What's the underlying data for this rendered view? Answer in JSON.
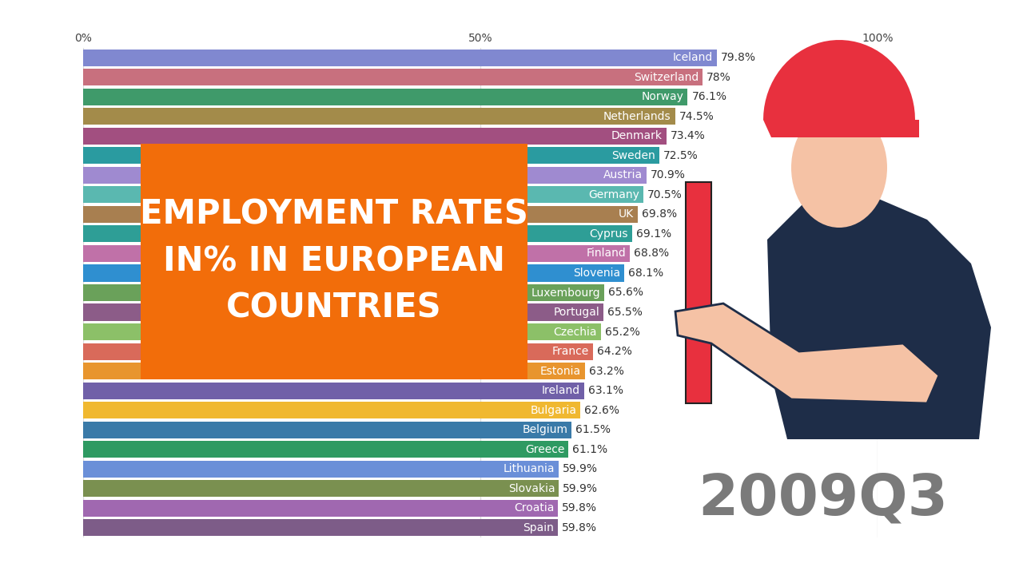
{
  "chart_data": {
    "type": "bar",
    "orientation": "horizontal",
    "title": "EMPLOYMENT RATES\nIN% IN EUROPEAN\nCOUNTRIES",
    "annotations": [
      "2009Q3"
    ],
    "categories": [
      "Iceland",
      "Switzerland",
      "Norway",
      "Netherlands",
      "Denmark",
      "Sweden",
      "Austria",
      "Germany",
      "UK",
      "Cyprus",
      "Finland",
      "Slovenia",
      "Luxembourg",
      "Portugal",
      "Czechia",
      "France",
      "Estonia",
      "Ireland",
      "Bulgaria",
      "Belgium",
      "Greece",
      "Lithuania",
      "Slovakia",
      "Croatia",
      "Spain"
    ],
    "values": [
      79.8,
      78,
      76.1,
      74.5,
      73.4,
      72.5,
      70.9,
      70.5,
      69.8,
      69.1,
      68.8,
      68.1,
      65.6,
      65.5,
      65.2,
      64.2,
      63.2,
      63.1,
      62.6,
      61.5,
      61.1,
      59.9,
      59.9,
      59.8,
      59.8
    ],
    "value_labels": [
      "79.8%",
      "78%",
      "76.1%",
      "74.5%",
      "73.4%",
      "72.5%",
      "70.9%",
      "70.5%",
      "69.8%",
      "69.1%",
      "68.8%",
      "68.1%",
      "65.6%",
      "65.5%",
      "65.2%",
      "64.2%",
      "63.2%",
      "63.1%",
      "62.6%",
      "61.5%",
      "61.1%",
      "59.9%",
      "59.9%",
      "59.8%",
      "59.8%"
    ],
    "colors": [
      "#8088d0",
      "#c8707e",
      "#3f9a6a",
      "#a38b4a",
      "#a24f80",
      "#2a9ba0",
      "#9f8ad0",
      "#5ab8b0",
      "#a87f50",
      "#2e9e96",
      "#c071a8",
      "#2f8fd0",
      "#6aa15a",
      "#8c5c88",
      "#8cc068",
      "#d96a5a",
      "#e8952e",
      "#7060a8",
      "#f0b830",
      "#3a7aa8",
      "#2e9a62",
      "#6a8fd8",
      "#7a9050",
      "#a068b0",
      "#7d5c88"
    ],
    "xlim": [
      0,
      100
    ],
    "xticks": [
      {
        "value": 0,
        "label": "0%"
      },
      {
        "value": 50,
        "label": "50%"
      },
      {
        "value": 100,
        "label": "100%"
      }
    ],
    "grid": true,
    "data_labels": true,
    "tick_labels": "x"
  }
}
